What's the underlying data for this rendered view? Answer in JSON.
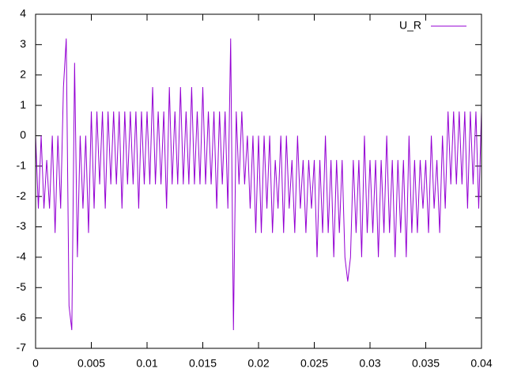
{
  "chart_data": {
    "type": "line",
    "x": [
      0,
      0.00025,
      0.0005,
      0.00075,
      0.001,
      0.00125,
      0.0015,
      0.00175,
      0.002,
      0.00225,
      0.0025,
      0.00275,
      0.003,
      0.00325,
      0.0035,
      0.00375,
      0.004,
      0.00425,
      0.0045,
      0.00475,
      0.005,
      0.00525,
      0.0055,
      0.00575,
      0.006,
      0.00625,
      0.0065,
      0.00675,
      0.007,
      0.00725,
      0.0075,
      0.00775,
      0.008,
      0.00825,
      0.0085,
      0.00875,
      0.009,
      0.00925,
      0.0095,
      0.00975,
      0.01,
      0.01025,
      0.0105,
      0.01075,
      0.011,
      0.01125,
      0.0115,
      0.01175,
      0.012,
      0.01225,
      0.0125,
      0.01275,
      0.013,
      0.01325,
      0.0135,
      0.01375,
      0.014,
      0.01425,
      0.0145,
      0.01475,
      0.015,
      0.01525,
      0.0155,
      0.01575,
      0.016,
      0.01625,
      0.0165,
      0.01675,
      0.017,
      0.01725,
      0.0175,
      0.01775,
      0.018,
      0.01825,
      0.0185,
      0.01875,
      0.019,
      0.01925,
      0.0195,
      0.01975,
      0.02,
      0.02025,
      0.0205,
      0.02075,
      0.021,
      0.02125,
      0.0215,
      0.02175,
      0.022,
      0.02225,
      0.0225,
      0.02275,
      0.023,
      0.02325,
      0.0235,
      0.02375,
      0.024,
      0.02425,
      0.0245,
      0.02475,
      0.025,
      0.02525,
      0.0255,
      0.02575,
      0.026,
      0.02625,
      0.0265,
      0.02675,
      0.027,
      0.02725,
      0.0275,
      0.02775,
      0.028,
      0.02825,
      0.0285,
      0.02875,
      0.029,
      0.02925,
      0.0295,
      0.02975,
      0.03,
      0.03025,
      0.0305,
      0.03075,
      0.031,
      0.03125,
      0.0315,
      0.03175,
      0.032,
      0.03225,
      0.0325,
      0.03275,
      0.033,
      0.03325,
      0.0335,
      0.03375,
      0.034,
      0.03425,
      0.0345,
      0.03475,
      0.035,
      0.03525,
      0.0355,
      0.03575,
      0.036,
      0.03625,
      0.0365,
      0.03675,
      0.037,
      0.03725,
      0.0375,
      0.03775,
      0.038,
      0.03825,
      0.0385,
      0.03875,
      0.039,
      0.03925,
      0.0395,
      0.03975,
      0.04
    ],
    "series": [
      {
        "name": "U_R",
        "color": "#9400d3",
        "values": [
          0,
          -2.4,
          0,
          -2.4,
          -0.8,
          -2.4,
          0,
          -3.2,
          0,
          -2.4,
          1.6,
          3.2,
          -5.6,
          -6.4,
          2.4,
          -4.0,
          0,
          -2.4,
          0,
          -3.2,
          0.8,
          -2.4,
          0.8,
          -1.6,
          0.8,
          -2.4,
          0.8,
          -1.6,
          0.8,
          -1.6,
          0.8,
          -2.4,
          0.8,
          -1.6,
          0.8,
          -1.6,
          0.8,
          -2.4,
          0.8,
          -1.6,
          0.8,
          -1.6,
          1.6,
          -1.6,
          0.8,
          -1.6,
          0.8,
          -2.4,
          1.6,
          -1.6,
          0.8,
          -1.6,
          1.6,
          -1.6,
          0.8,
          -1.6,
          1.6,
          -1.6,
          0.8,
          -1.6,
          1.6,
          -1.6,
          0.8,
          -1.6,
          0.8,
          -2.4,
          0.8,
          -1.6,
          0.8,
          -2.4,
          3.2,
          -6.4,
          0.8,
          -1.6,
          0.8,
          -1.6,
          0,
          -2.4,
          0,
          -3.2,
          0,
          -3.2,
          0,
          -2.4,
          0,
          -3.2,
          -0.8,
          -2.4,
          0,
          -3.2,
          0,
          -2.4,
          -0.8,
          -3.2,
          0,
          -2.4,
          -0.8,
          -3.2,
          -0.8,
          -2.4,
          -0.8,
          -4.0,
          -0.8,
          -3.2,
          0,
          -3.2,
          -0.8,
          -4.0,
          -0.8,
          -3.2,
          -0.8,
          -4.0,
          -4.8,
          -4.0,
          -0.8,
          -3.2,
          -0.8,
          -4.0,
          0,
          -3.2,
          -0.8,
          -3.2,
          -0.8,
          -4.0,
          -0.8,
          -3.2,
          0,
          -3.2,
          -0.8,
          -4.0,
          -0.8,
          -3.2,
          -0.8,
          -4.0,
          0,
          -3.2,
          -0.8,
          -3.2,
          -0.8,
          -2.4,
          -0.8,
          -3.2,
          0,
          -2.4,
          -0.8,
          -3.2,
          0,
          -2.4,
          0.8,
          -1.6,
          0.8,
          -1.6,
          0.8,
          -1.6,
          0.8,
          -2.4,
          0.8,
          -1.6,
          0.8,
          -2.4,
          0.8
        ]
      }
    ],
    "xlim": [
      0,
      0.04
    ],
    "xticks": [
      0,
      0.005,
      0.01,
      0.015,
      0.02,
      0.025,
      0.03,
      0.035,
      0.04
    ],
    "ylim": [
      -7,
      4
    ],
    "yticks": [
      -7,
      -6,
      -5,
      -4,
      -3,
      -2,
      -1,
      0,
      1,
      2,
      3,
      4
    ],
    "legend": "top-right"
  }
}
